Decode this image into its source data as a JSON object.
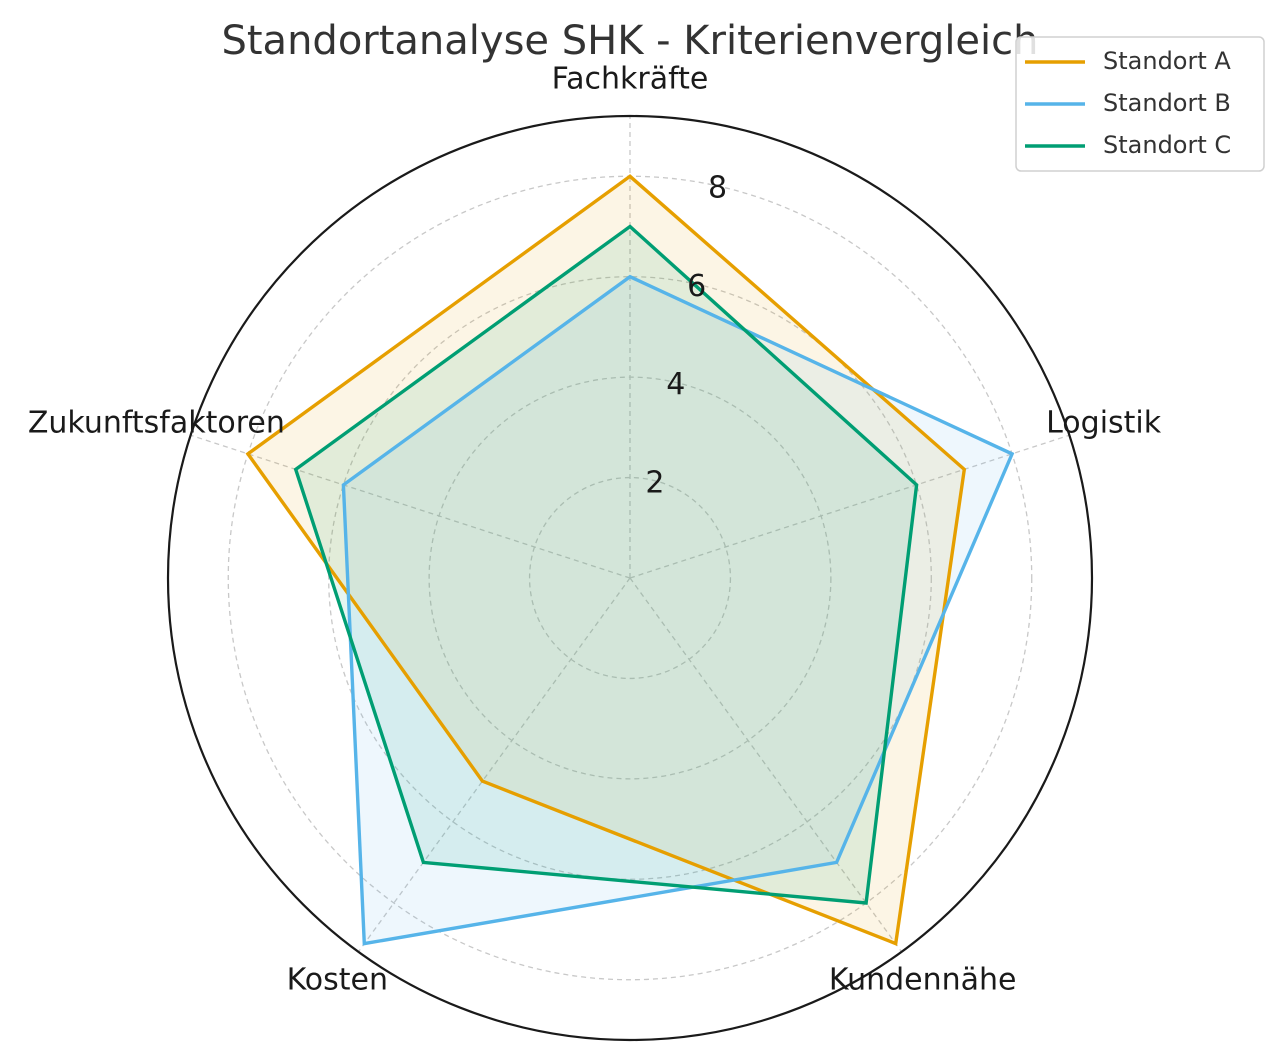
{
  "chart_data": {
    "type": "radar",
    "title": "Standortanalyse SHK - Kriterienvergleich",
    "categories": [
      "Fachkräfte",
      "Logistik",
      "Kundennähe",
      "Kosten",
      "Zukunftsfaktoren"
    ],
    "r_ticks": [
      "2",
      "4",
      "6",
      "8"
    ],
    "r_tick_values": [
      2,
      4,
      6,
      8
    ],
    "rlim": [
      0,
      9.2
    ],
    "grid": true,
    "legend_position": "top-right",
    "series": [
      {
        "name": "Standort A",
        "values": [
          8,
          7,
          9,
          5,
          8
        ],
        "color": "#E69F00"
      },
      {
        "name": "Standort B",
        "values": [
          6,
          8,
          7,
          9,
          6
        ],
        "color": "#56B4E9"
      },
      {
        "name": "Standort C",
        "values": [
          7,
          6,
          8,
          7,
          7
        ],
        "color": "#009E73"
      }
    ]
  }
}
